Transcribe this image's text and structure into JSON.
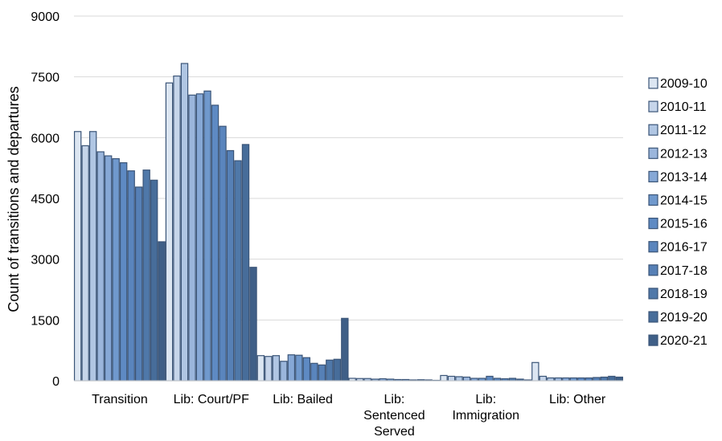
{
  "chart_data": {
    "type": "bar",
    "ylabel": "Count of transitions and departures",
    "xlabel": "",
    "ylim": [
      0,
      9000
    ],
    "yticks": [
      0,
      1500,
      3000,
      4500,
      6000,
      7500,
      9000
    ],
    "grid": true,
    "legend_position": "right",
    "categories": [
      [
        "Transition"
      ],
      [
        "Lib: Court/PF"
      ],
      [
        "Lib: Bailed"
      ],
      [
        "Lib:",
        "Sentenced",
        "Served"
      ],
      [
        "Lib:",
        "Immigration"
      ],
      [
        "Lib: Other"
      ]
    ],
    "series": [
      {
        "name": "2009-10",
        "color": "#dce6f2",
        "values": [
          6150,
          7350,
          620,
          60,
          130,
          450
        ]
      },
      {
        "name": "2010-11",
        "color": "#c6d5ea",
        "values": [
          5800,
          7520,
          600,
          55,
          110,
          110
        ]
      },
      {
        "name": "2011-12",
        "color": "#b0c6e3",
        "values": [
          6150,
          7830,
          620,
          55,
          100,
          70
        ]
      },
      {
        "name": "2012-13",
        "color": "#9bb6dc",
        "values": [
          5650,
          7050,
          480,
          40,
          90,
          70
        ]
      },
      {
        "name": "2013-14",
        "color": "#86a8d6",
        "values": [
          5550,
          7080,
          640,
          50,
          60,
          70
        ]
      },
      {
        "name": "2014-15",
        "color": "#7099cd",
        "values": [
          5480,
          7150,
          630,
          40,
          60,
          70
        ]
      },
      {
        "name": "2015-16",
        "color": "#5e8ac3",
        "values": [
          5380,
          6800,
          570,
          30,
          110,
          70
        ]
      },
      {
        "name": "2016-17",
        "color": "#5a85bd",
        "values": [
          5180,
          6280,
          430,
          30,
          60,
          70
        ]
      },
      {
        "name": "2017-18",
        "color": "#5680b6",
        "values": [
          4780,
          5680,
          390,
          20,
          50,
          80
        ]
      },
      {
        "name": "2018-19",
        "color": "#4f78a9",
        "values": [
          5200,
          5430,
          510,
          25,
          60,
          90
        ]
      },
      {
        "name": "2019-20",
        "color": "#476d9a",
        "values": [
          4950,
          5830,
          530,
          20,
          40,
          110
        ]
      },
      {
        "name": "2020-21",
        "color": "#3f5f87",
        "values": [
          3430,
          2800,
          1540,
          10,
          20,
          90
        ]
      }
    ]
  }
}
